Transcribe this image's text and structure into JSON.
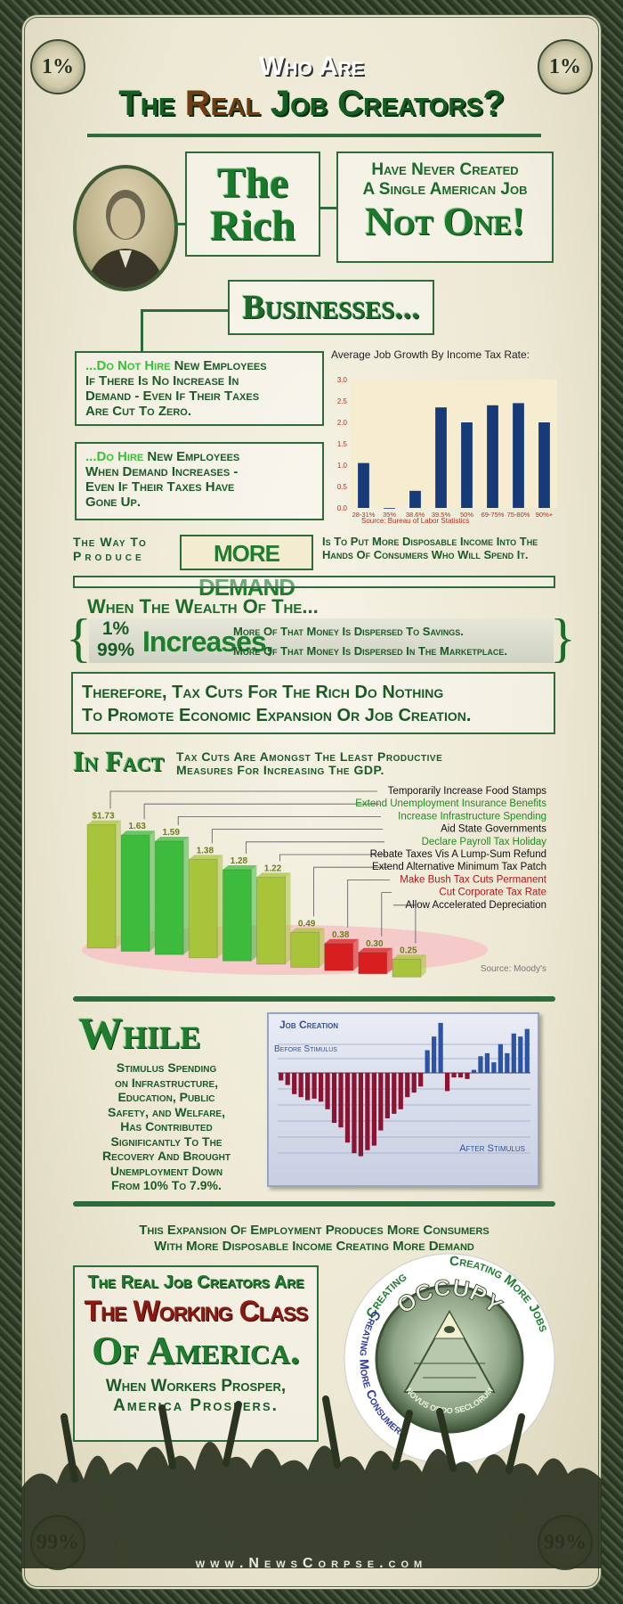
{
  "header": {
    "corner_top": "1%",
    "corner_bottom": "99%",
    "line1": "Who Are",
    "line2a": "The ",
    "line2b": "Real",
    "line2c": " Job Creators?"
  },
  "rich": {
    "the": "The",
    "rich": "Rich",
    "claim1": "Have Never Created",
    "claim2": "A Single American Job",
    "claim3": "Not One!"
  },
  "businesses": {
    "title": "Businesses...",
    "box1_hl": "...Do Not Hire",
    "box1_rest": " New Employees",
    "box1_l2": "If There Is No Increase In",
    "box1_l3": "Demand - Even If Their Taxes",
    "box1_l4": "Are Cut To Zero.",
    "box2_hl": "...Do Hire",
    "box2_rest": " New Employees",
    "box2_l2": "When Demand Increases -",
    "box2_l3": "Even If Their Taxes Have",
    "box2_l4": "Gone Up."
  },
  "demand": {
    "left1": "The Way To",
    "left2": "Produce",
    "mid": "MORE DEMAND",
    "right1": "Is To Put More Disposable Income Into The",
    "right2": "Hands Of Consumers Who Will Spend It."
  },
  "wealth": {
    "title": "When The Wealth Of The...",
    "p1": "1%",
    "p99": "99%",
    "inc": "Increases,",
    "s1": "More Of That Money Is Dispersed To Savings.",
    "s2": "More Of That Money Is Dispersed In The Marketplace."
  },
  "therefore": {
    "l1": "Therefore, Tax Cuts For The Rich Do Nothing",
    "l2": "To Promote Economic Expansion Or Job Creation."
  },
  "infact": {
    "big": "In Fact",
    "l1": "Tax Cuts Are Amongst The Least Productive",
    "l2": "Measures For Increasing The GDP.",
    "source": "Source: Moody's"
  },
  "while": {
    "big": "While",
    "lines": [
      "Stimulus Spending",
      "on Infrastructure,",
      "Education, Public",
      "Safety, and Welfare,",
      "Has Contributed",
      "Significantly To The",
      "Recovery And Brought",
      "Unemployment Down",
      "From 10% To 7.9%."
    ]
  },
  "expansion": {
    "l1": "This Expansion Of Employment Produces More Consumers",
    "l2": "With More Disposable Income Creating More Demand"
  },
  "creators": {
    "l1": "The Real Job Creators Are",
    "l2": "The Working Class",
    "l3": "Of America.",
    "l4": "When Workers Prosper,",
    "l5": "America Prospers."
  },
  "seal": {
    "occupy": "OCCUPY",
    "motto": "NOVUS ORDO SECLORUM",
    "ring_right": "Creating More Jobs",
    "ring_left": "Creating More Consumers",
    "ring_top": "Creating"
  },
  "footer": {
    "url": "www.NewsCorpse.com"
  },
  "chart_data": [
    {
      "type": "bar",
      "title": "Average Job Growth By Income Tax Rate:",
      "categories": [
        "28-31%",
        "35%",
        "38.6%",
        "39.5%",
        "50%",
        "69-75%",
        "75-80%",
        "90%+"
      ],
      "values": [
        1.05,
        0.0,
        0.4,
        2.35,
        2.0,
        2.4,
        2.45,
        2.0
      ],
      "ylim": [
        0,
        3.0
      ],
      "yticks": [
        "0.0",
        "0.5",
        "1.0",
        "1.5",
        "2.0",
        "2.5",
        "3.0"
      ],
      "source": "Source: Bureau of Labor Statistics",
      "color": "#173a79"
    },
    {
      "type": "bar",
      "values": [
        1.73,
        1.63,
        1.59,
        1.38,
        1.28,
        1.22,
        0.49,
        0.38,
        0.3,
        0.25
      ],
      "value_labels": [
        "$1.73",
        "1.63",
        "1.59",
        "1.38",
        "1.28",
        "1.22",
        "0.49",
        "0.38",
        "0.30",
        "0.25"
      ],
      "categories": [
        "Temporarily Increase Food Stamps",
        "Extend Unemployment Insurance Benefits",
        "Increase Infrastructure Spending",
        "Aid State Governments",
        "Declare Payroll Tax Holiday",
        "Rebate Taxes Vis A Lump-Sum Refund",
        "Extend Alternative Minimum Tax Patch",
        "Make Bush Tax Cuts Permanent",
        "Cut Corporate Tax Rate",
        "Allow Accelerated Depreciation"
      ],
      "colors": [
        "#a8c43a",
        "#3dbb3d",
        "#3dbb3d",
        "#a8c43a",
        "#3dbb3d",
        "#a8c43a",
        "#a8c43a",
        "#d81f1f",
        "#d81f1f",
        "#a8c43a"
      ],
      "label_colors": [
        "#111111",
        "#1d8c1d",
        "#1d8c1d",
        "#111111",
        "#1d8c1d",
        "#111111",
        "#111111",
        "#b01818",
        "#b01818",
        "#111111"
      ]
    },
    {
      "type": "bar",
      "title": "Job Creation",
      "annotations": [
        "Before Stimulus",
        "After Stimulus"
      ],
      "values": [
        -0.5,
        -0.8,
        -1.4,
        -1.6,
        -1.8,
        -1.7,
        -1.9,
        -2.4,
        -3.3,
        -3.6,
        -4.6,
        -5.3,
        -5.5,
        -5.1,
        -4.8,
        -3.8,
        -3.0,
        -2.7,
        -2.4,
        -1.6,
        -1.3,
        -0.9,
        1.5,
        2.4,
        3.3,
        -1.2,
        -0.3,
        -0.3,
        -0.4,
        0.2,
        1.1,
        1.3,
        0.7,
        1.9,
        1.3,
        2.6,
        2.4,
        2.9
      ],
      "pos_color": "#2d53a6",
      "neg_color": "#8a1432"
    }
  ]
}
